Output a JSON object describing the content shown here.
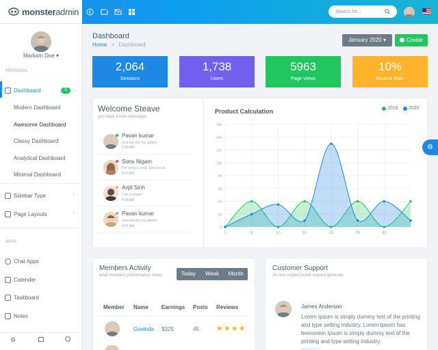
{
  "app": {
    "logo_bold": "monster",
    "logo_light": "admin"
  },
  "topbar": {
    "search_placeholder": "Search for..."
  },
  "sidebar": {
    "user_name": "Markam Doe ▾",
    "section_personal": "PERSONAL",
    "section_apps": "APPS",
    "items": [
      {
        "label": "Dashboard",
        "badge": "5"
      },
      {
        "label": "Modern Dashboard"
      },
      {
        "label": "Awesome Dashboard"
      },
      {
        "label": "Classy Dashboard"
      },
      {
        "label": "Analytical Dashboard"
      },
      {
        "label": "Minimal Dashboard"
      },
      {
        "label": "Sidebar Type"
      },
      {
        "label": "Page Layouts"
      },
      {
        "label": "Chat Apps"
      },
      {
        "label": "Calender"
      },
      {
        "label": "Taskboard"
      },
      {
        "label": "Notes"
      }
    ]
  },
  "header": {
    "title": "Dashboard",
    "breadcrumb_home": "Home",
    "breadcrumb_sep": ">",
    "breadcrumb_current": "Dashboard",
    "month_label": "January 2020 ▾",
    "create_label": "Create"
  },
  "stats": [
    {
      "value": "2,064",
      "label": "Sessions",
      "color": "#1e88e5"
    },
    {
      "value": "1,738",
      "label": "Users",
      "color": "#7460ee"
    },
    {
      "value": "5963",
      "label": "Page Views",
      "color": "#21c75e"
    },
    {
      "value": "10%",
      "label": "Bounce Rate",
      "color": "#ffb22b"
    }
  ],
  "welcome": {
    "title": "Welcome Steave",
    "subtitle": "you have 4 new messages",
    "messages": [
      {
        "name": "Pavan kumar",
        "text": "Just see the my admin!",
        "time": "9:30 AM",
        "status_color": "#21c75e"
      },
      {
        "name": "Sonu Nigam",
        "text": "I've sung a song! See you at",
        "time": "9:10 AM",
        "status_color": "#fc4b6c"
      },
      {
        "name": "Arijit Sinh",
        "text": "I am a singer!",
        "time": "9:08 AM",
        "status_color": "#ffb22b"
      },
      {
        "name": "Pavan kumar",
        "text": "Just see the my admin!",
        "time": "9:02 AM",
        "status_color": "#99abb4"
      }
    ]
  },
  "chart_data": {
    "type": "area",
    "title": "Product Calculation",
    "x": [
      0,
      5,
      10,
      15,
      20,
      25,
      30
    ],
    "x_ticks": [
      "0",
      "5",
      "10",
      "15",
      "20",
      "25",
      "30"
    ],
    "y_ticks": [
      "0",
      "2k",
      "4k",
      "6k",
      "8k",
      "10k",
      "12k",
      "14k",
      "16k"
    ],
    "ylim": [
      0,
      16
    ],
    "xlim": [
      0,
      35
    ],
    "grid": true,
    "legend_position": "top-right",
    "series": [
      {
        "name": "2016",
        "color": "#21c75e",
        "points": [
          [
            0,
            0
          ],
          [
            5,
            4
          ],
          [
            10,
            0
          ],
          [
            15,
            4
          ],
          [
            20,
            0
          ],
          [
            25,
            4
          ],
          [
            30,
            0
          ],
          [
            35,
            4
          ]
        ]
      },
      {
        "name": "2020",
        "color": "#1e88e5",
        "points": [
          [
            0,
            0
          ],
          [
            5,
            2
          ],
          [
            10,
            3.5
          ],
          [
            15,
            1
          ],
          [
            20,
            13
          ],
          [
            25,
            1
          ],
          [
            30,
            4
          ],
          [
            35,
            1
          ]
        ]
      }
    ]
  },
  "members": {
    "title": "Members Activity",
    "subtitle": "what members preformance status",
    "filters": [
      "Today",
      "Week",
      "Month"
    ],
    "columns": [
      "Member",
      "Name",
      "Earnings",
      "Posts",
      "Reviews"
    ],
    "rows": [
      {
        "name": "Govinda",
        "earnings": "$325",
        "posts": "45",
        "reviews": "★★★★"
      }
    ]
  },
  "support": {
    "title": "Customer Support",
    "subtitle": "24 new support ticket request generate",
    "name": "James Anderson",
    "text": "Lorem Ipsum is simply dummy text of the printing and type setting industry. Lorem Ipsum has beenorem Ipsum is simply dummy text of the printing and type setting industry."
  }
}
